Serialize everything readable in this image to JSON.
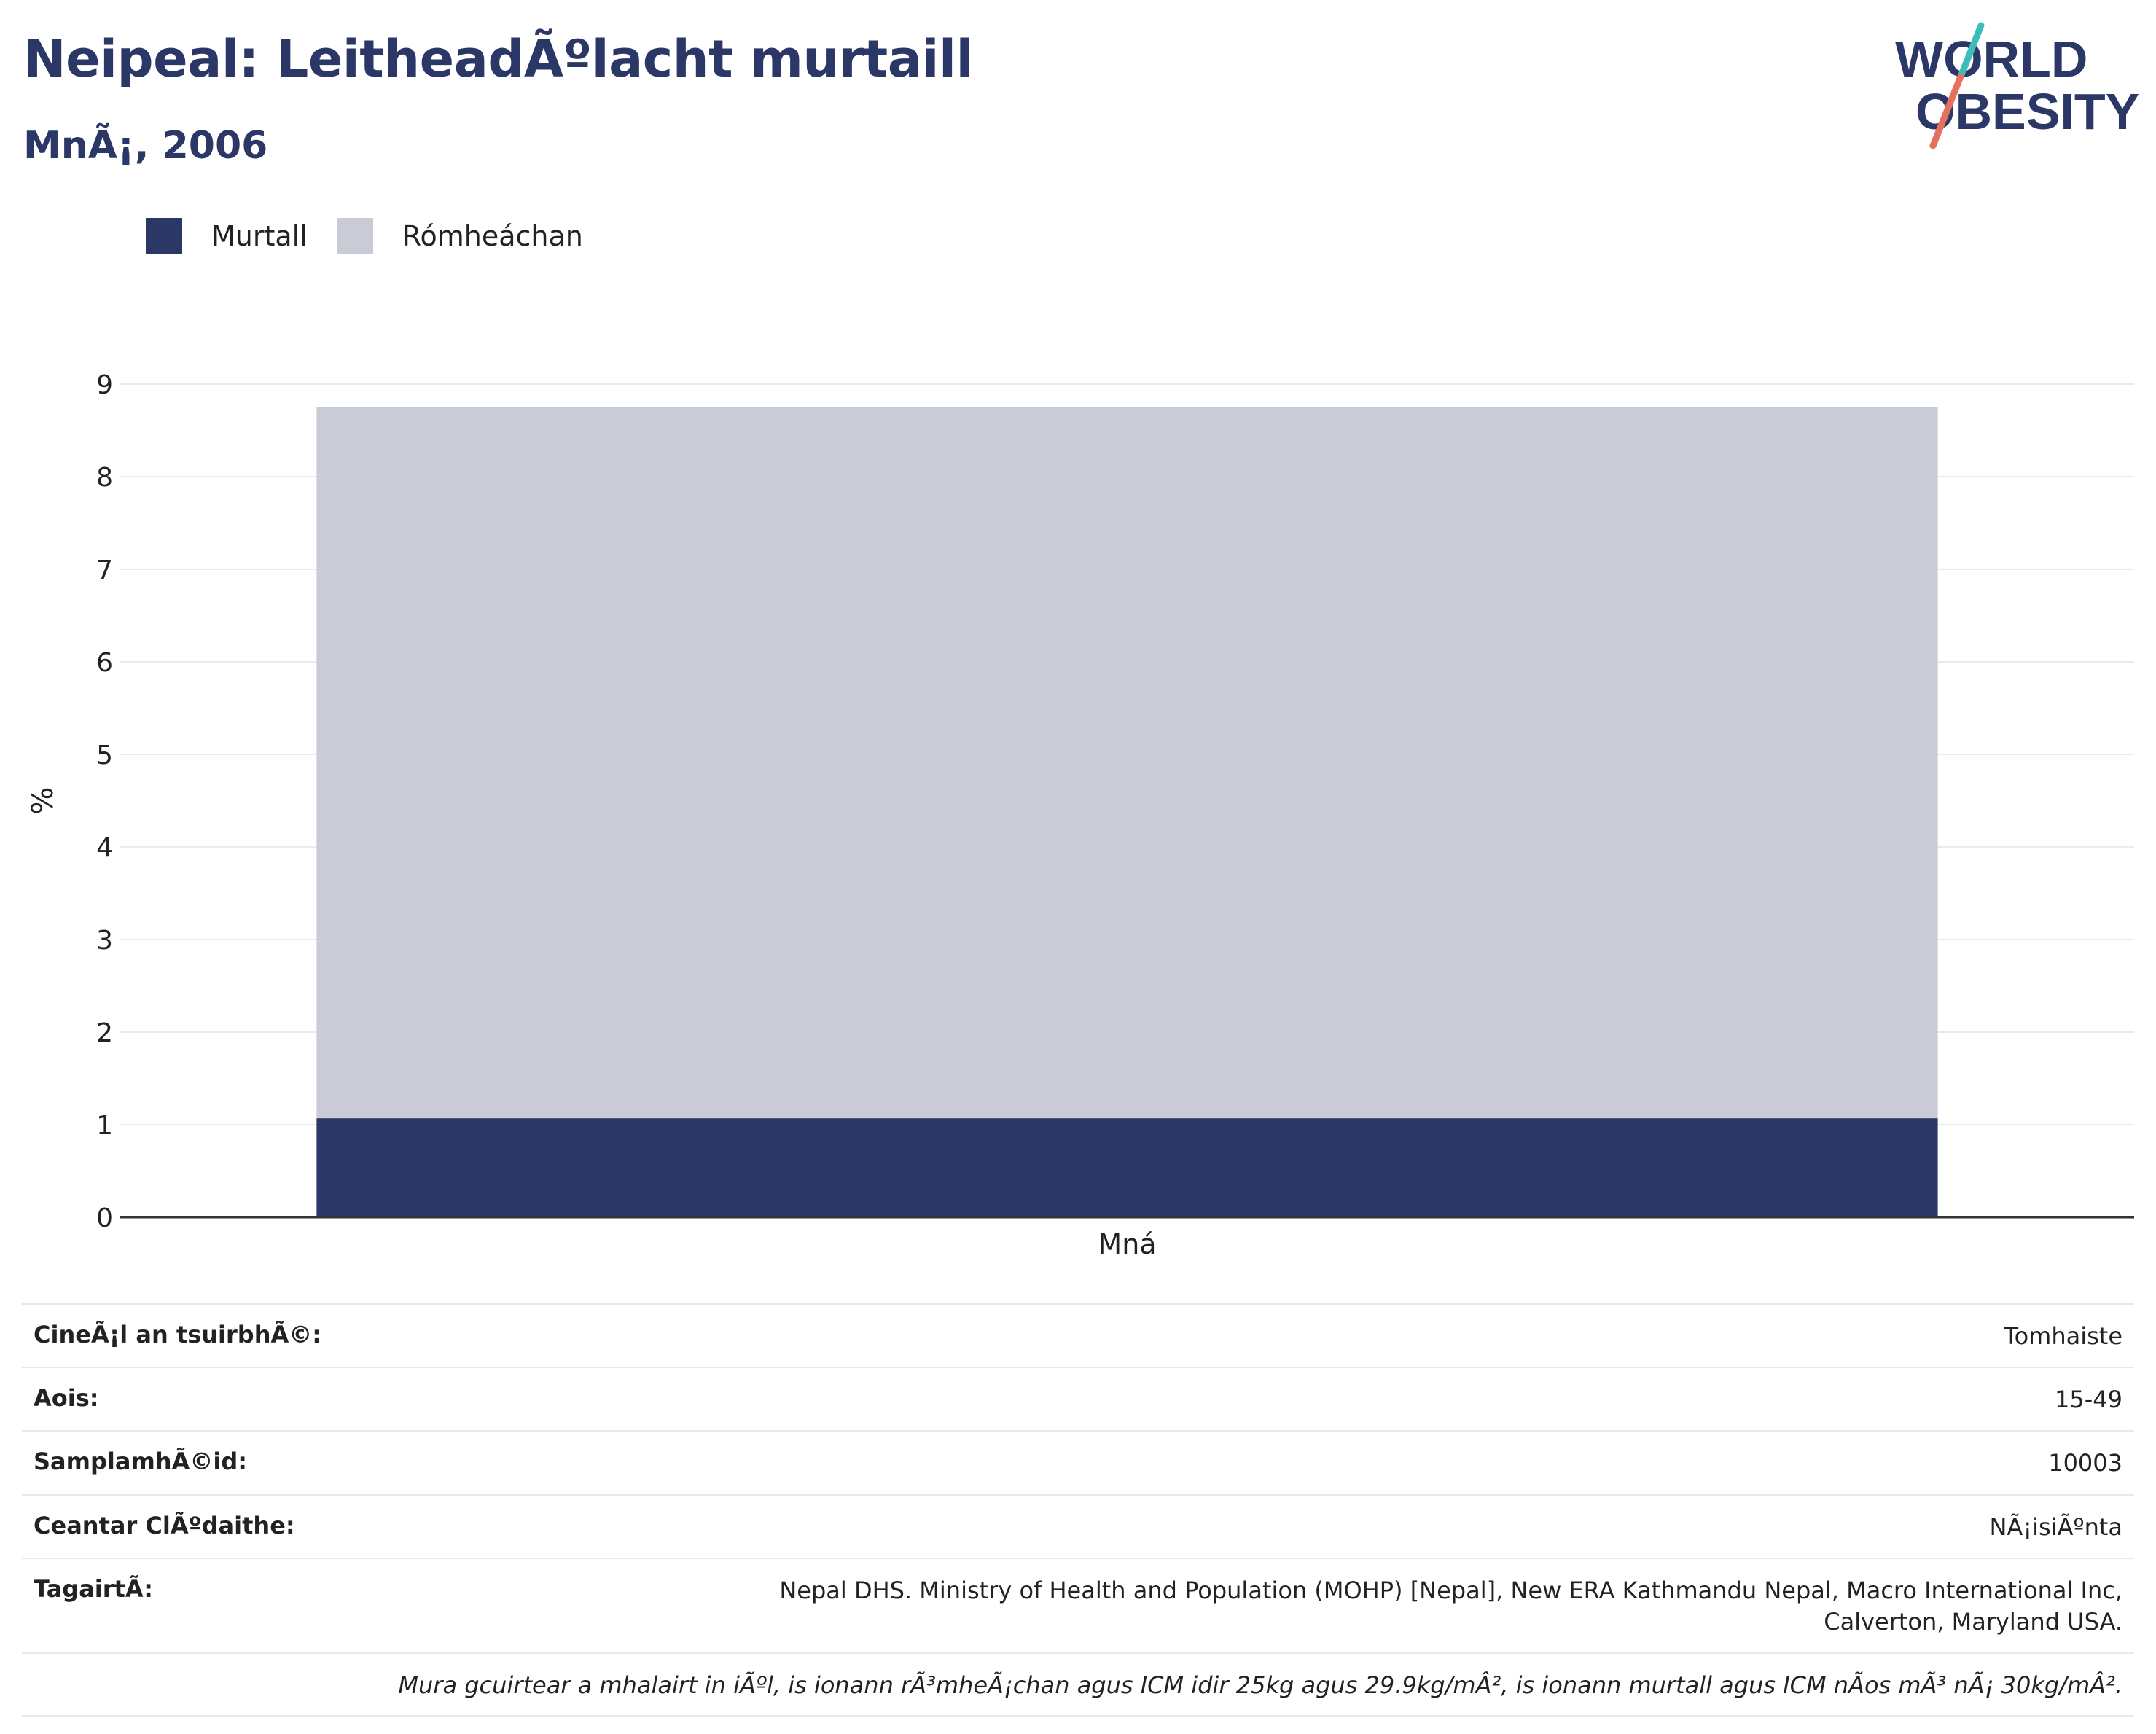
{
  "header": {
    "title": "Neipeal: LeitheadÃºlacht murtaill",
    "subtitle": "MnÃ¡, 2006",
    "logo_line1": "WORLD",
    "logo_line2": "OBESITY"
  },
  "colors": {
    "murtall": "#2b3766",
    "romheachan": "#c9ccd7",
    "title": "#2b3766",
    "logo_teal": "#3cbcbc",
    "logo_coral": "#e4705d"
  },
  "chart_data": {
    "type": "bar",
    "stacked": true,
    "categories": [
      "Mná"
    ],
    "series": [
      {
        "name": "Murtall",
        "values": [
          1.07
        ]
      },
      {
        "name": "Rómheáchan",
        "values": [
          7.68
        ]
      }
    ],
    "ylabel": "%",
    "xlabel": "",
    "ylim": [
      0,
      9
    ],
    "yticks": [
      "0",
      "1",
      "2",
      "3",
      "4",
      "5",
      "6",
      "7",
      "8",
      "9"
    ],
    "grid": true,
    "legend": "top-left"
  },
  "details": [
    {
      "label": "CineÃ¡l an tsuirbhÃ©:",
      "value": "Tomhaiste"
    },
    {
      "label": "Aois:",
      "value": "15-49"
    },
    {
      "label": "SamplamhÃ©id:",
      "value": "10003"
    },
    {
      "label": "Ceantar ClÃºdaithe:",
      "value": "NÃ¡isiÃºnta"
    },
    {
      "label": "TagairtÃ:",
      "value": "Nepal DHS. Ministry of Health and Population (MOHP) [Nepal], New ERA Kathmandu Nepal, Macro International Inc, Calverton, Maryland USA."
    }
  ],
  "footnote": "Mura gcuirtear a mhalairt in iÃºl, is ionann rÃ³mheÃ¡chan agus ICM idir 25kg agus 29.9kg/mÂ², is ionann murtall agus ICM nÃ­os mÃ³ nÃ¡ 30kg/mÂ²."
}
